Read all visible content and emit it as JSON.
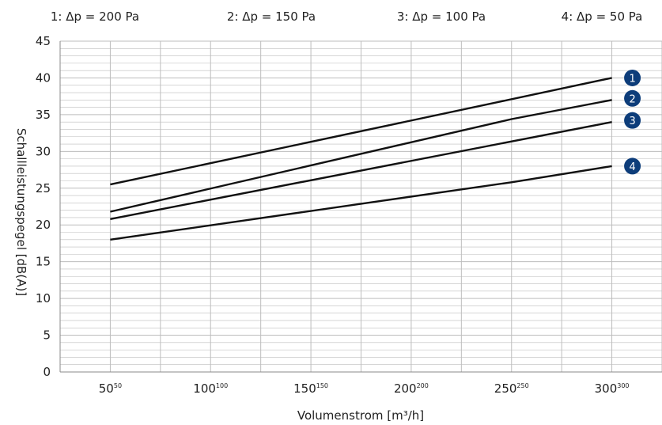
{
  "chart_data": {
    "type": "line",
    "legend": [
      {
        "id": "1",
        "label": "1: Δp = 200 Pa"
      },
      {
        "id": "2",
        "label": "2: Δp = 150 Pa"
      },
      {
        "id": "3",
        "label": "3: Δp = 100 Pa"
      },
      {
        "id": "4",
        "label": "4: Δp = 50 Pa"
      }
    ],
    "xlabel": "Volumenstrom [m³/h]",
    "ylabel": "Schallleistungspegel [dB(A)]",
    "xlim": [
      25,
      325
    ],
    "ylim": [
      0,
      45
    ],
    "x_ticks": [
      {
        "value": 50,
        "label": "50",
        "sup": "50"
      },
      {
        "value": 100,
        "label": "100",
        "sup": "100"
      },
      {
        "value": 150,
        "label": "150",
        "sup": "150"
      },
      {
        "value": 200,
        "label": "200",
        "sup": "200"
      },
      {
        "value": 250,
        "label": "250",
        "sup": "250"
      },
      {
        "value": 300,
        "label": "300",
        "sup": "300"
      }
    ],
    "y_ticks": [
      0,
      5,
      10,
      15,
      20,
      25,
      30,
      35,
      40,
      45
    ],
    "grid": true,
    "series": [
      {
        "name": "1",
        "x": [
          50,
          300
        ],
        "y": [
          25.5,
          40.0
        ]
      },
      {
        "name": "2",
        "x": [
          50,
          250,
          300
        ],
        "y": [
          21.8,
          34.4,
          37.0
        ]
      },
      {
        "name": "3",
        "x": [
          50,
          300
        ],
        "y": [
          20.8,
          34.0
        ]
      },
      {
        "name": "4",
        "x": [
          50,
          250,
          300
        ],
        "y": [
          18.0,
          25.8,
          28.0
        ]
      }
    ],
    "colors": {
      "line": "#111111",
      "badge": "#0d3d7a",
      "grid": "#bdbdbd"
    }
  }
}
